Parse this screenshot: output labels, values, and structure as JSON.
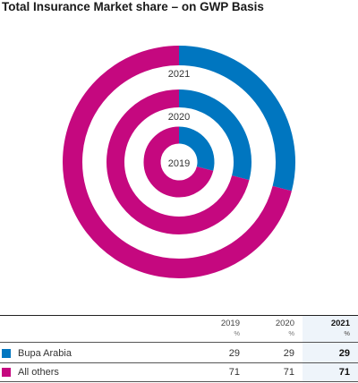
{
  "title": "Total Insurance Market share – on GWP Basis",
  "colors": {
    "bupa": "#0076c0",
    "others": "#c5087f"
  },
  "chart_data": {
    "type": "pie",
    "subtype": "nested-donut",
    "title": "Total Insurance Market share – on GWP Basis",
    "rings": [
      {
        "year": "2021",
        "values": [
          29,
          71
        ]
      },
      {
        "year": "2020",
        "values": [
          29,
          71
        ]
      },
      {
        "year": "2019",
        "values": [
          29,
          71
        ]
      }
    ],
    "series": [
      {
        "name": "Bupa Arabia",
        "color": "#0076c0"
      },
      {
        "name": "All others",
        "color": "#c5087f"
      }
    ]
  },
  "table": {
    "columns": [
      {
        "year": "2019",
        "unit": "%"
      },
      {
        "year": "2020",
        "unit": "%"
      },
      {
        "year": "2021",
        "unit": "%"
      }
    ],
    "rows": [
      {
        "label": "Bupa Arabia",
        "values": [
          "29",
          "29",
          "29"
        ]
      },
      {
        "label": "All others",
        "values": [
          "71",
          "71",
          "71"
        ]
      }
    ]
  }
}
